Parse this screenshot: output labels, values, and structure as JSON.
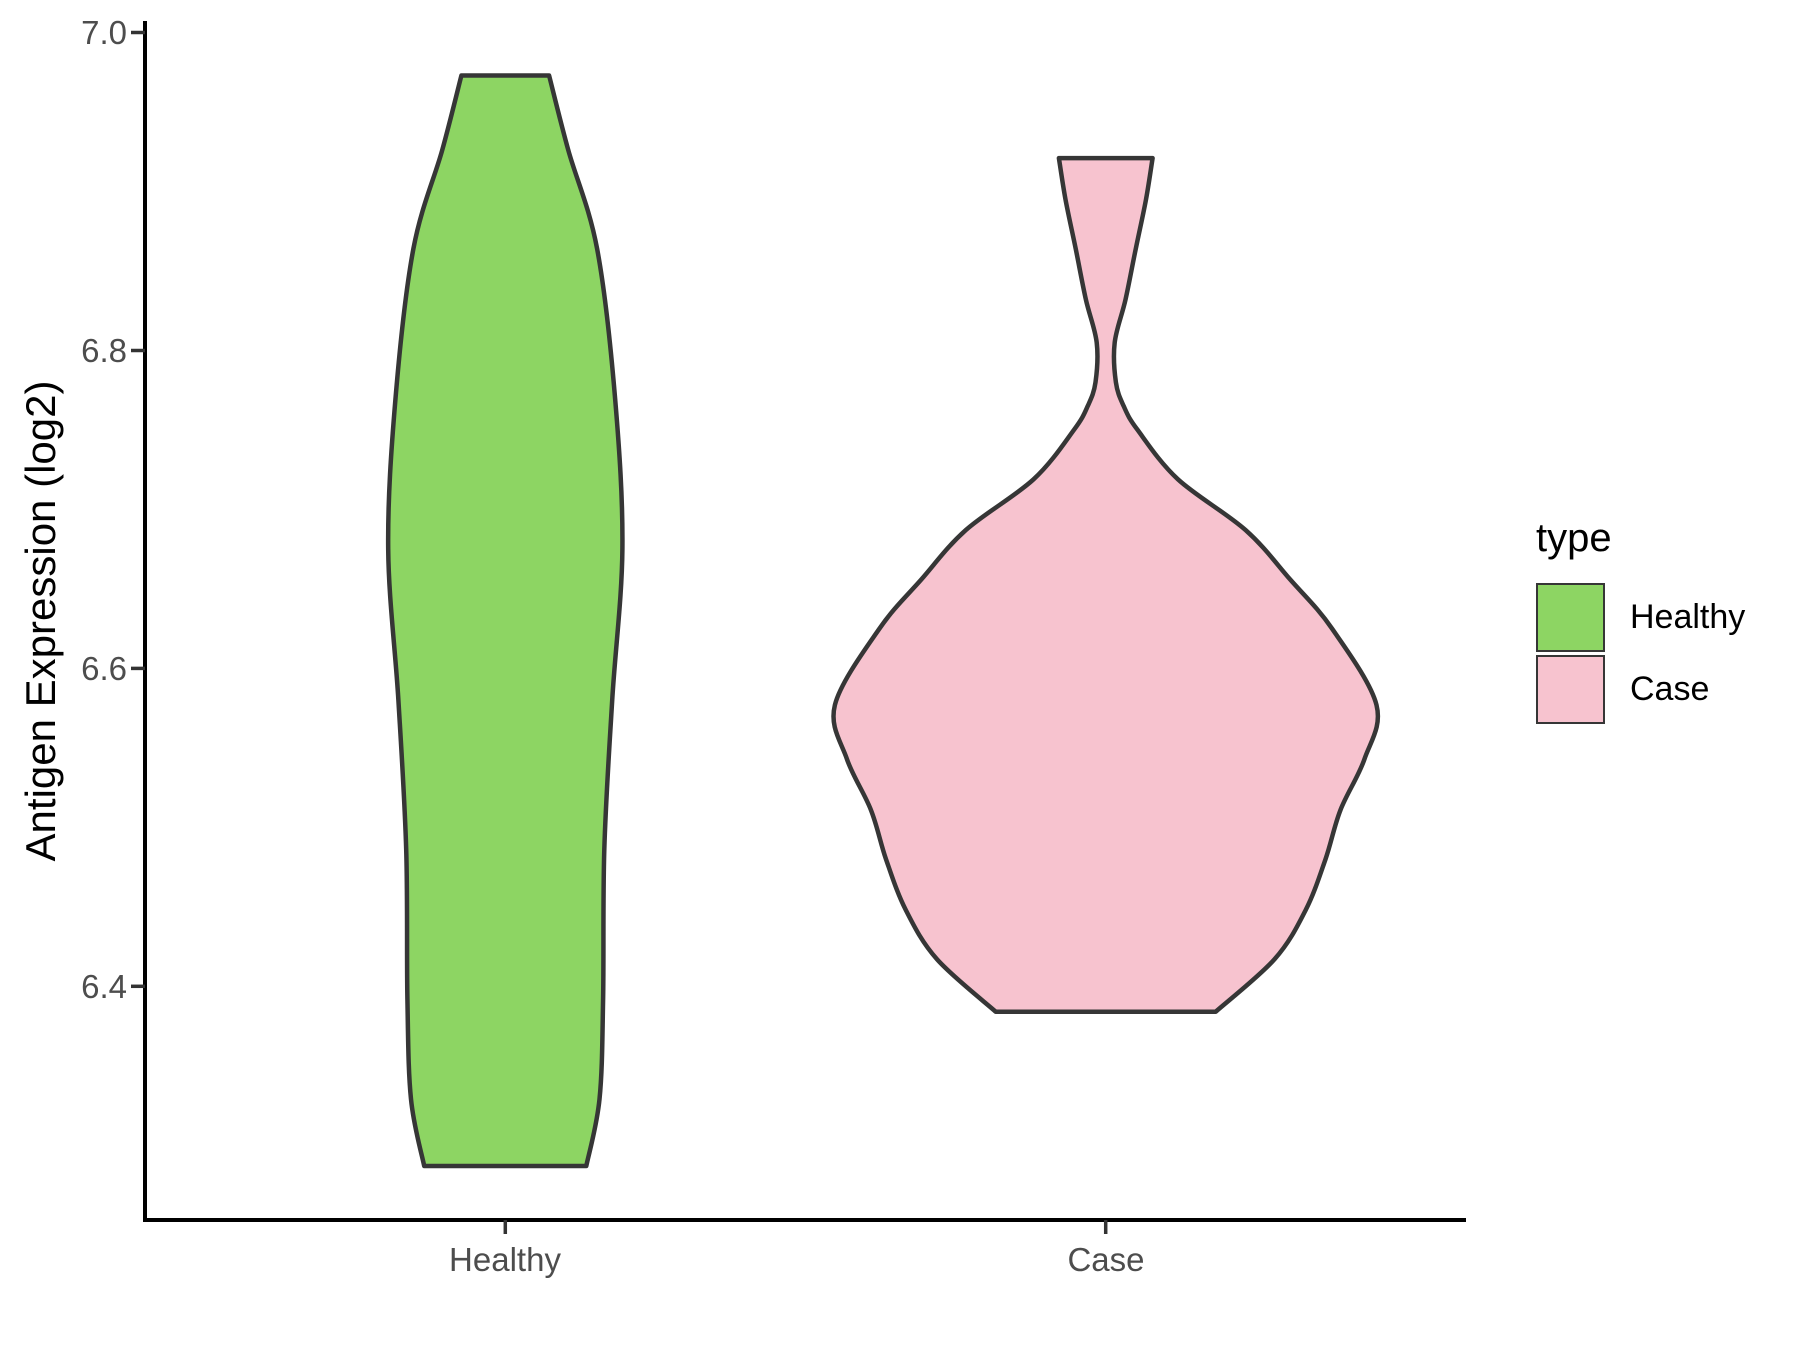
{
  "figure": {
    "y_tick_labels": [
      "7.0",
      "6.8",
      "6.6",
      "6.4"
    ],
    "x_tick_labels": [
      "Healthy",
      "Case"
    ]
  },
  "legend": {
    "title": "type",
    "items": [
      {
        "label": "Healthy",
        "color": "#8dd563"
      },
      {
        "label": "Case",
        "color": "#f7c3cf"
      }
    ]
  },
  "chart_data": {
    "type": "violin",
    "title": "",
    "xlabel": "",
    "ylabel": "Antigen Expression (log2)",
    "categories": [
      "Healthy",
      "Case"
    ],
    "x_positions": [
      1,
      2
    ],
    "x_range": [
      0.4,
      2.6
    ],
    "y_ticks": [
      7.0,
      6.8,
      6.6,
      6.4
    ],
    "ylim": [
      6.253,
      7.006
    ],
    "grid": "off",
    "legend_position": "right",
    "axis_color": "#000000",
    "tick_color": "#333333",
    "tick_label_color": "#4d4d4d",
    "series": [
      {
        "name": "Healthy",
        "color": "#8dd563",
        "stroke": "#363636",
        "center": 1,
        "y_min": 6.287,
        "y_max": 6.973,
        "widest_at": 6.675,
        "profile": [
          {
            "v": 6.973,
            "hw": 0.073
          },
          {
            "v": 6.926,
            "hw": 0.105
          },
          {
            "v": 6.864,
            "hw": 0.153
          },
          {
            "v": 6.769,
            "hw": 0.183
          },
          {
            "v": 6.675,
            "hw": 0.195
          },
          {
            "v": 6.58,
            "hw": 0.178
          },
          {
            "v": 6.486,
            "hw": 0.165
          },
          {
            "v": 6.392,
            "hw": 0.163
          },
          {
            "v": 6.329,
            "hw": 0.157
          },
          {
            "v": 6.287,
            "hw": 0.135
          }
        ]
      },
      {
        "name": "Case",
        "color": "#f7c3cf",
        "stroke": "#363636",
        "center": 2,
        "y_min": 6.384,
        "y_max": 6.921,
        "widest_at": 6.577,
        "profile": [
          {
            "v": 6.921,
            "hw": 0.078
          },
          {
            "v": 6.895,
            "hw": 0.067
          },
          {
            "v": 6.864,
            "hw": 0.05
          },
          {
            "v": 6.832,
            "hw": 0.033
          },
          {
            "v": 6.805,
            "hw": 0.015
          },
          {
            "v": 6.78,
            "hw": 0.017
          },
          {
            "v": 6.765,
            "hw": 0.03
          },
          {
            "v": 6.75,
            "hw": 0.053
          },
          {
            "v": 6.719,
            "hw": 0.12
          },
          {
            "v": 6.687,
            "hw": 0.233
          },
          {
            "v": 6.656,
            "hw": 0.307
          },
          {
            "v": 6.625,
            "hw": 0.377
          },
          {
            "v": 6.577,
            "hw": 0.451
          },
          {
            "v": 6.543,
            "hw": 0.431
          },
          {
            "v": 6.511,
            "hw": 0.391
          },
          {
            "v": 6.48,
            "hw": 0.366
          },
          {
            "v": 6.448,
            "hw": 0.333
          },
          {
            "v": 6.417,
            "hw": 0.281
          },
          {
            "v": 6.384,
            "hw": 0.183
          }
        ]
      }
    ]
  }
}
